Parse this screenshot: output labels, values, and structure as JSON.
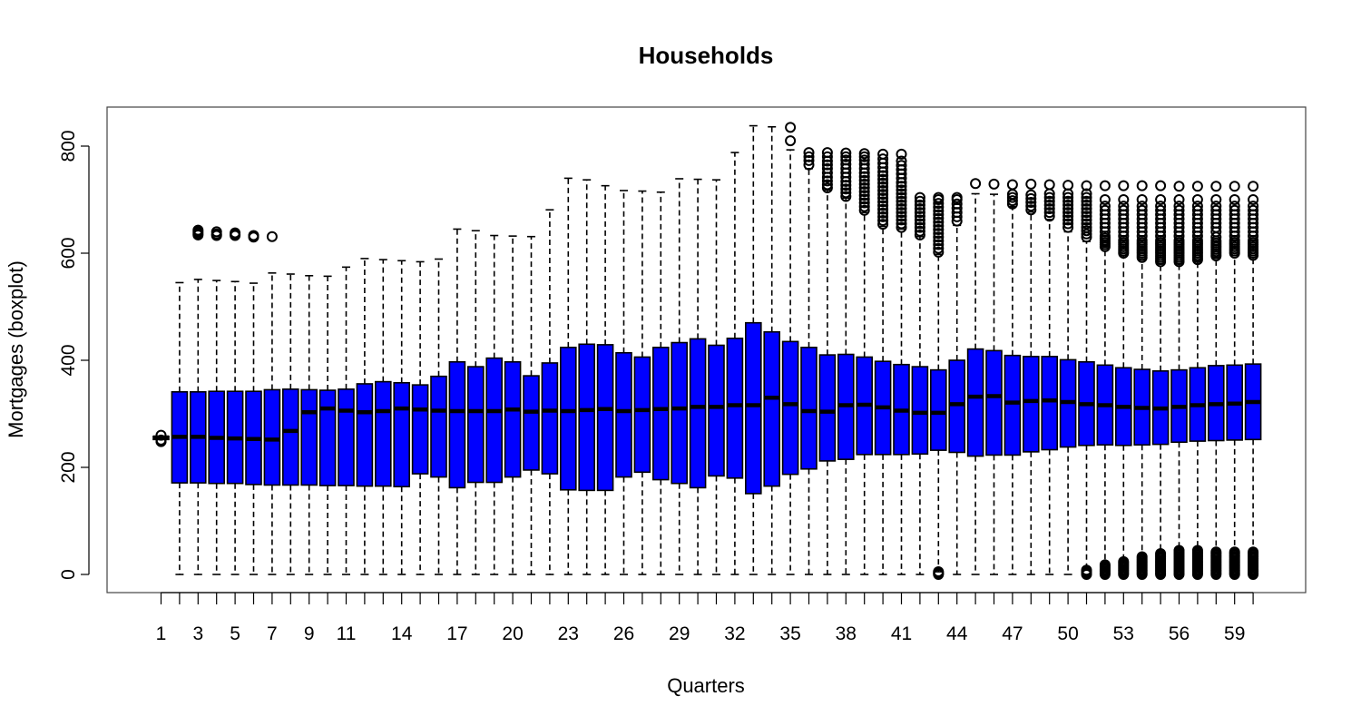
{
  "chart_data": {
    "type": "boxplot",
    "title": "Households",
    "xlabel": "Quarters",
    "ylabel": "Mortgages (boxplot)",
    "ylim": [
      -35,
      870
    ],
    "yticks": [
      0,
      200,
      400,
      600,
      800
    ],
    "x_tick_labels": [
      "1",
      "3",
      "5",
      "7",
      "9",
      "11",
      "14",
      "17",
      "20",
      "23",
      "26",
      "29",
      "32",
      "35",
      "38",
      "41",
      "44",
      "47",
      "50",
      "53",
      "56",
      "59"
    ],
    "colors": {
      "box_fill": "#0000ff",
      "box_stroke": "#000000",
      "median": "#000000"
    },
    "quarters": [
      1,
      2,
      3,
      4,
      5,
      6,
      7,
      8,
      9,
      10,
      11,
      12,
      13,
      14,
      15,
      16,
      17,
      18,
      19,
      20,
      21,
      22,
      23,
      24,
      25,
      26,
      27,
      28,
      29,
      30,
      31,
      32,
      33,
      34,
      35,
      36,
      37,
      38,
      39,
      40,
      41,
      42,
      43,
      44,
      45,
      46,
      47,
      48,
      49,
      50,
      51,
      52,
      53,
      54,
      55,
      56,
      57,
      58,
      59,
      60
    ],
    "boxes": [
      {
        "q": 1,
        "lw": 252,
        "q1": 252,
        "med": 256,
        "q3": 258,
        "uw": 258,
        "out": [
          248,
          249,
          250,
          251,
          260
        ]
      },
      {
        "q": 2,
        "lw": 0,
        "q1": 171,
        "med": 257,
        "q3": 341,
        "uw": 545,
        "out": []
      },
      {
        "q": 3,
        "lw": 0,
        "q1": 171,
        "med": 257,
        "q3": 341,
        "uw": 551,
        "out": [
          634,
          637,
          640,
          643
        ]
      },
      {
        "q": 4,
        "lw": 0,
        "q1": 170,
        "med": 255,
        "q3": 342,
        "uw": 549,
        "out": [
          633,
          636,
          640
        ]
      },
      {
        "q": 5,
        "lw": 0,
        "q1": 170,
        "med": 254,
        "q3": 342,
        "uw": 547,
        "out": [
          633,
          635,
          638
        ]
      },
      {
        "q": 6,
        "lw": 0,
        "q1": 168,
        "med": 253,
        "q3": 342,
        "uw": 544,
        "out": [
          630,
          633
        ]
      },
      {
        "q": 7,
        "lw": 0,
        "q1": 167,
        "med": 252,
        "q3": 345,
        "uw": 563,
        "out": [
          631
        ]
      },
      {
        "q": 8,
        "lw": 0,
        "q1": 167,
        "med": 268,
        "q3": 346,
        "uw": 561,
        "out": []
      },
      {
        "q": 9,
        "lw": 0,
        "q1": 167,
        "med": 303,
        "q3": 345,
        "uw": 558,
        "out": []
      },
      {
        "q": 10,
        "lw": 0,
        "q1": 166,
        "med": 310,
        "q3": 344,
        "uw": 557,
        "out": []
      },
      {
        "q": 11,
        "lw": 0,
        "q1": 166,
        "med": 306,
        "q3": 346,
        "uw": 574,
        "out": []
      },
      {
        "q": 12,
        "lw": 0,
        "q1": 165,
        "med": 303,
        "q3": 356,
        "uw": 590,
        "out": []
      },
      {
        "q": 13,
        "lw": 0,
        "q1": 165,
        "med": 305,
        "q3": 360,
        "uw": 588,
        "out": []
      },
      {
        "q": 14,
        "lw": 0,
        "q1": 164,
        "med": 310,
        "q3": 358,
        "uw": 586,
        "out": []
      },
      {
        "q": 15,
        "lw": 0,
        "q1": 188,
        "med": 308,
        "q3": 354,
        "uw": 584,
        "out": []
      },
      {
        "q": 16,
        "lw": 0,
        "q1": 182,
        "med": 306,
        "q3": 370,
        "uw": 589,
        "out": []
      },
      {
        "q": 17,
        "lw": 0,
        "q1": 162,
        "med": 305,
        "q3": 397,
        "uw": 645,
        "out": []
      },
      {
        "q": 18,
        "lw": 0,
        "q1": 172,
        "med": 305,
        "q3": 388,
        "uw": 642,
        "out": []
      },
      {
        "q": 19,
        "lw": 0,
        "q1": 172,
        "med": 305,
        "q3": 404,
        "uw": 633,
        "out": []
      },
      {
        "q": 20,
        "lw": 0,
        "q1": 182,
        "med": 308,
        "q3": 397,
        "uw": 632,
        "out": []
      },
      {
        "q": 21,
        "lw": 0,
        "q1": 195,
        "med": 304,
        "q3": 371,
        "uw": 631,
        "out": []
      },
      {
        "q": 22,
        "lw": 0,
        "q1": 188,
        "med": 306,
        "q3": 395,
        "uw": 681,
        "out": []
      },
      {
        "q": 23,
        "lw": 0,
        "q1": 158,
        "med": 305,
        "q3": 424,
        "uw": 740,
        "out": []
      },
      {
        "q": 24,
        "lw": 0,
        "q1": 157,
        "med": 307,
        "q3": 430,
        "uw": 737,
        "out": []
      },
      {
        "q": 25,
        "lw": 0,
        "q1": 157,
        "med": 309,
        "q3": 429,
        "uw": 726,
        "out": []
      },
      {
        "q": 26,
        "lw": 0,
        "q1": 182,
        "med": 305,
        "q3": 414,
        "uw": 717,
        "out": []
      },
      {
        "q": 27,
        "lw": 0,
        "q1": 191,
        "med": 307,
        "q3": 406,
        "uw": 716,
        "out": []
      },
      {
        "q": 28,
        "lw": 0,
        "q1": 177,
        "med": 309,
        "q3": 424,
        "uw": 714,
        "out": []
      },
      {
        "q": 29,
        "lw": 0,
        "q1": 170,
        "med": 310,
        "q3": 433,
        "uw": 739,
        "out": []
      },
      {
        "q": 30,
        "lw": 0,
        "q1": 162,
        "med": 313,
        "q3": 440,
        "uw": 738,
        "out": []
      },
      {
        "q": 31,
        "lw": 0,
        "q1": 184,
        "med": 313,
        "q3": 428,
        "uw": 737,
        "out": []
      },
      {
        "q": 32,
        "lw": 0,
        "q1": 180,
        "med": 316,
        "q3": 441,
        "uw": 788,
        "out": []
      },
      {
        "q": 33,
        "lw": 0,
        "q1": 151,
        "med": 316,
        "q3": 470,
        "uw": 838,
        "out": []
      },
      {
        "q": 34,
        "lw": 0,
        "q1": 165,
        "med": 330,
        "q3": 453,
        "uw": 836,
        "out": []
      },
      {
        "q": 35,
        "lw": 0,
        "q1": 187,
        "med": 318,
        "q3": 435,
        "uw": 793,
        "out": [
          810,
          835
        ]
      },
      {
        "q": 36,
        "lw": 0,
        "q1": 197,
        "med": 305,
        "q3": 424,
        "uw": 758,
        "out": [
          765,
          773,
          780,
          788
        ]
      },
      {
        "q": 37,
        "lw": 0,
        "q1": 212,
        "med": 304,
        "q3": 410,
        "uw": 718,
        "out": [
          722,
          728,
          735,
          742,
          750,
          758,
          765,
          772,
          780,
          788
        ]
      },
      {
        "q": 38,
        "lw": 0,
        "q1": 215,
        "med": 316,
        "q3": 411,
        "uw": 703,
        "out": [
          706,
          713,
          720,
          727,
          734,
          742,
          750,
          758,
          766,
          774,
          780,
          787
        ]
      },
      {
        "q": 39,
        "lw": 0,
        "q1": 224,
        "med": 317,
        "q3": 406,
        "uw": 676,
        "out": [
          680,
          687,
          694,
          701,
          708,
          715,
          722,
          729,
          736,
          743,
          750,
          758,
          766,
          774,
          780,
          786
        ]
      },
      {
        "q": 40,
        "lw": 0,
        "q1": 224,
        "med": 312,
        "q3": 398,
        "uw": 650,
        "out": [
          654,
          661,
          668,
          675,
          682,
          689,
          696,
          703,
          710,
          717,
          724,
          731,
          738,
          745,
          752,
          760,
          768,
          776,
          785
        ]
      },
      {
        "q": 41,
        "lw": 0,
        "q1": 224,
        "med": 306,
        "q3": 392,
        "uw": 645,
        "out": [
          648,
          655,
          662,
          669,
          676,
          683,
          690,
          697,
          704,
          711,
          718,
          725,
          732,
          740,
          748,
          756,
          764,
          772,
          785
        ]
      },
      {
        "q": 42,
        "lw": 0,
        "q1": 225,
        "med": 302,
        "q3": 388,
        "uw": 631,
        "out": [
          634,
          641,
          648,
          655,
          662,
          669,
          676,
          683,
          690,
          697,
          704
        ]
      },
      {
        "q": 43,
        "lw": 5,
        "q1": 232,
        "med": 302,
        "q3": 382,
        "uw": 598,
        "out": [
          0,
          1,
          3,
          5,
          602,
          609,
          616,
          623,
          630,
          637,
          644,
          651,
          658,
          665,
          672,
          679,
          686,
          693,
          700,
          704
        ]
      },
      {
        "q": 44,
        "lw": 0,
        "q1": 228,
        "med": 318,
        "q3": 400,
        "uw": 652,
        "out": [
          660,
          668,
          676,
          684,
          692,
          700,
          704
        ]
      },
      {
        "q": 45,
        "lw": 0,
        "q1": 221,
        "med": 332,
        "q3": 421,
        "uw": 711,
        "out": [
          730
        ]
      },
      {
        "q": 46,
        "lw": 0,
        "q1": 223,
        "med": 333,
        "q3": 418,
        "uw": 710,
        "out": [
          729
        ]
      },
      {
        "q": 47,
        "lw": 0,
        "q1": 223,
        "med": 321,
        "q3": 409,
        "uw": 687,
        "out": [
          692,
          698,
          704,
          710,
          728
        ]
      },
      {
        "q": 48,
        "lw": 0,
        "q1": 229,
        "med": 324,
        "q3": 407,
        "uw": 677,
        "out": [
          681,
          688,
          695,
          702,
          709,
          729
        ]
      },
      {
        "q": 49,
        "lw": 0,
        "q1": 233,
        "med": 325,
        "q3": 407,
        "uw": 663,
        "out": [
          669,
          676,
          683,
          690,
          697,
          704,
          711,
          728
        ]
      },
      {
        "q": 50,
        "lw": 0,
        "q1": 238,
        "med": 322,
        "q3": 401,
        "uw": 640,
        "out": [
          648,
          655,
          662,
          669,
          676,
          683,
          690,
          697,
          704,
          711,
          727
        ]
      },
      {
        "q": 51,
        "lw": 10,
        "q1": 241,
        "med": 318,
        "q3": 397,
        "uw": 622,
        "out": [
          0,
          2,
          4,
          6,
          8,
          630,
          636,
          642,
          648,
          655,
          662,
          669,
          676,
          683,
          690,
          697,
          704,
          711,
          726
        ]
      },
      {
        "q": 52,
        "lw": 20,
        "q1": 242,
        "med": 316,
        "q3": 391,
        "uw": 614,
        "out": [
          0,
          3,
          6,
          9,
          12,
          15,
          18,
          612,
          616,
          620,
          624,
          628,
          632,
          640,
          648,
          656,
          664,
          672,
          680,
          688,
          700,
          726
        ]
      },
      {
        "q": 53,
        "lw": 25,
        "q1": 241,
        "med": 313,
        "q3": 386,
        "uw": 595,
        "out": [
          0,
          3,
          6,
          9,
          12,
          15,
          18,
          21,
          24,
          600,
          604,
          608,
          612,
          616,
          620,
          624,
          632,
          640,
          648,
          656,
          664,
          672,
          680,
          688,
          700,
          726
        ]
      },
      {
        "q": 54,
        "lw": 35,
        "q1": 242,
        "med": 311,
        "q3": 383,
        "uw": 588,
        "out": [
          0,
          3,
          6,
          9,
          12,
          15,
          18,
          21,
          24,
          27,
          30,
          33,
          592,
          596,
          600,
          604,
          608,
          612,
          616,
          620,
          624,
          632,
          640,
          648,
          656,
          664,
          672,
          680,
          688,
          700,
          726
        ]
      },
      {
        "q": 55,
        "lw": 40,
        "q1": 243,
        "med": 310,
        "q3": 380,
        "uw": 580,
        "out": [
          0,
          3,
          6,
          9,
          12,
          15,
          18,
          21,
          24,
          27,
          30,
          33,
          36,
          39,
          584,
          588,
          592,
          596,
          600,
          604,
          608,
          612,
          616,
          620,
          624,
          632,
          640,
          648,
          656,
          664,
          672,
          680,
          688,
          700,
          726
        ]
      },
      {
        "q": 56,
        "lw": 48,
        "q1": 247,
        "med": 313,
        "q3": 382,
        "uw": 580,
        "out": [
          0,
          3,
          6,
          9,
          12,
          15,
          18,
          21,
          24,
          27,
          30,
          33,
          36,
          39,
          42,
          45,
          584,
          588,
          592,
          596,
          600,
          604,
          608,
          612,
          616,
          620,
          624,
          632,
          640,
          648,
          656,
          664,
          672,
          680,
          688,
          700,
          725
        ]
      },
      {
        "q": 57,
        "lw": 48,
        "q1": 249,
        "med": 316,
        "q3": 386,
        "uw": 585,
        "out": [
          0,
          3,
          6,
          9,
          12,
          15,
          18,
          21,
          24,
          27,
          30,
          33,
          36,
          39,
          42,
          45,
          588,
          592,
          596,
          600,
          604,
          608,
          612,
          616,
          620,
          624,
          632,
          640,
          648,
          656,
          664,
          672,
          680,
          688,
          700,
          725
        ]
      },
      {
        "q": 58,
        "lw": 46,
        "q1": 250,
        "med": 318,
        "q3": 390,
        "uw": 592,
        "out": [
          0,
          3,
          6,
          9,
          12,
          15,
          18,
          21,
          24,
          27,
          30,
          33,
          36,
          39,
          42,
          595,
          599,
          603,
          607,
          611,
          615,
          619,
          623,
          630,
          640,
          648,
          656,
          664,
          672,
          680,
          688,
          700,
          725
        ]
      },
      {
        "q": 59,
        "lw": 45,
        "q1": 251,
        "med": 319,
        "q3": 391,
        "uw": 596,
        "out": [
          0,
          3,
          6,
          9,
          12,
          15,
          18,
          21,
          24,
          27,
          30,
          33,
          36,
          39,
          42,
          600,
          604,
          608,
          612,
          616,
          620,
          624,
          632,
          640,
          648,
          656,
          664,
          672,
          680,
          688,
          700,
          725
        ]
      },
      {
        "q": 60,
        "lw": 45,
        "q1": 252,
        "med": 322,
        "q3": 393,
        "uw": 592,
        "out": [
          0,
          3,
          6,
          9,
          12,
          15,
          18,
          21,
          24,
          27,
          30,
          33,
          36,
          39,
          42,
          596,
          600,
          604,
          608,
          612,
          616,
          620,
          624,
          632,
          640,
          648,
          656,
          664,
          672,
          680,
          688,
          700,
          725
        ]
      }
    ]
  }
}
